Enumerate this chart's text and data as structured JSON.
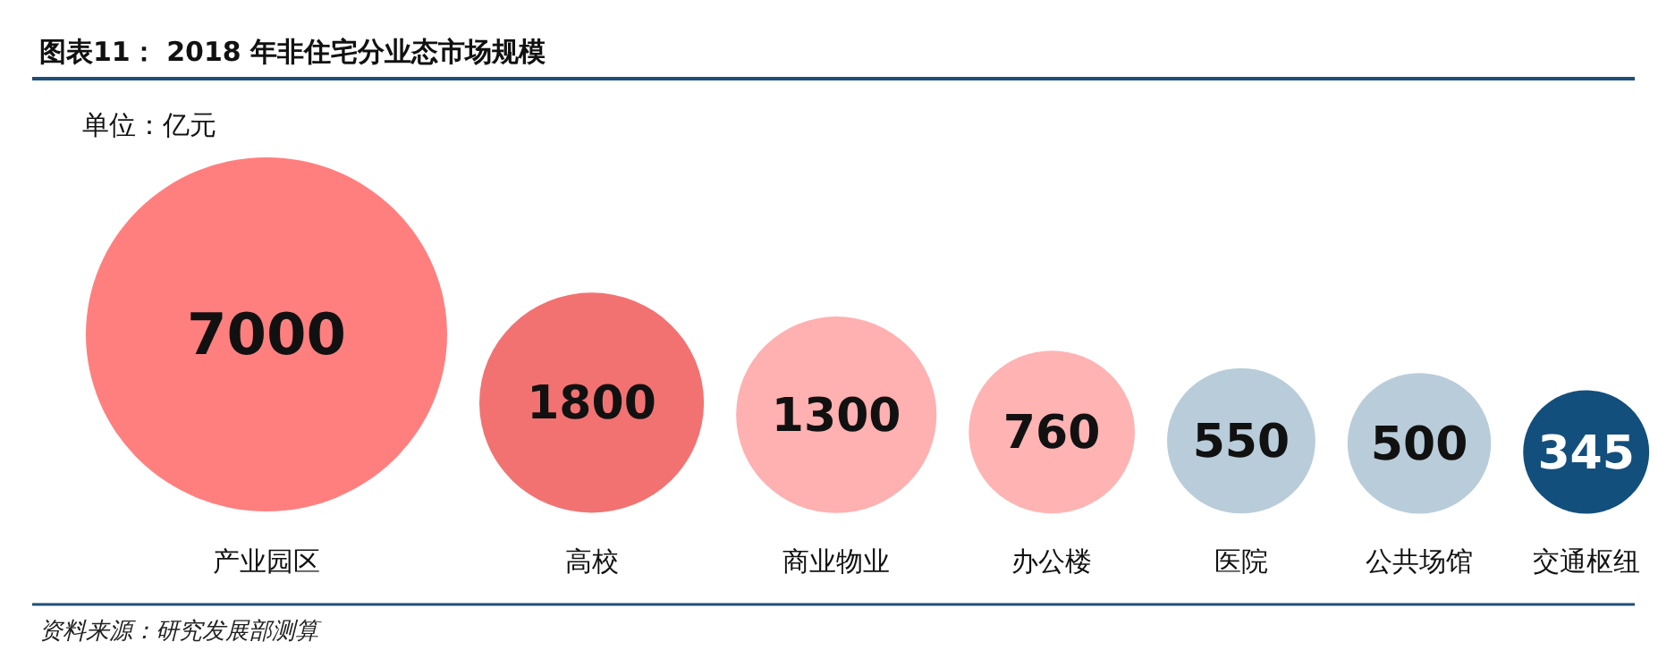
{
  "chart_data": {
    "type": "other",
    "title": "图表11： 2018 年非住宅分业态市场规模",
    "subtitle": "单位：亿元",
    "categories": [
      "产业园区",
      "高校",
      "商业物业",
      "办公楼",
      "医院",
      "公共场馆",
      "交通枢纽"
    ],
    "values": [
      7000,
      1800,
      1300,
      760,
      550,
      500,
      345
    ],
    "colors": [
      "#ff7f7f",
      "#f27272",
      "#ffb0b0",
      "#ffb3b3",
      "#b9ccd9",
      "#b9ccd9",
      "#134f7d"
    ],
    "data_labels": true,
    "annotations": [
      "资料来源：研究发展部测算"
    ]
  }
}
